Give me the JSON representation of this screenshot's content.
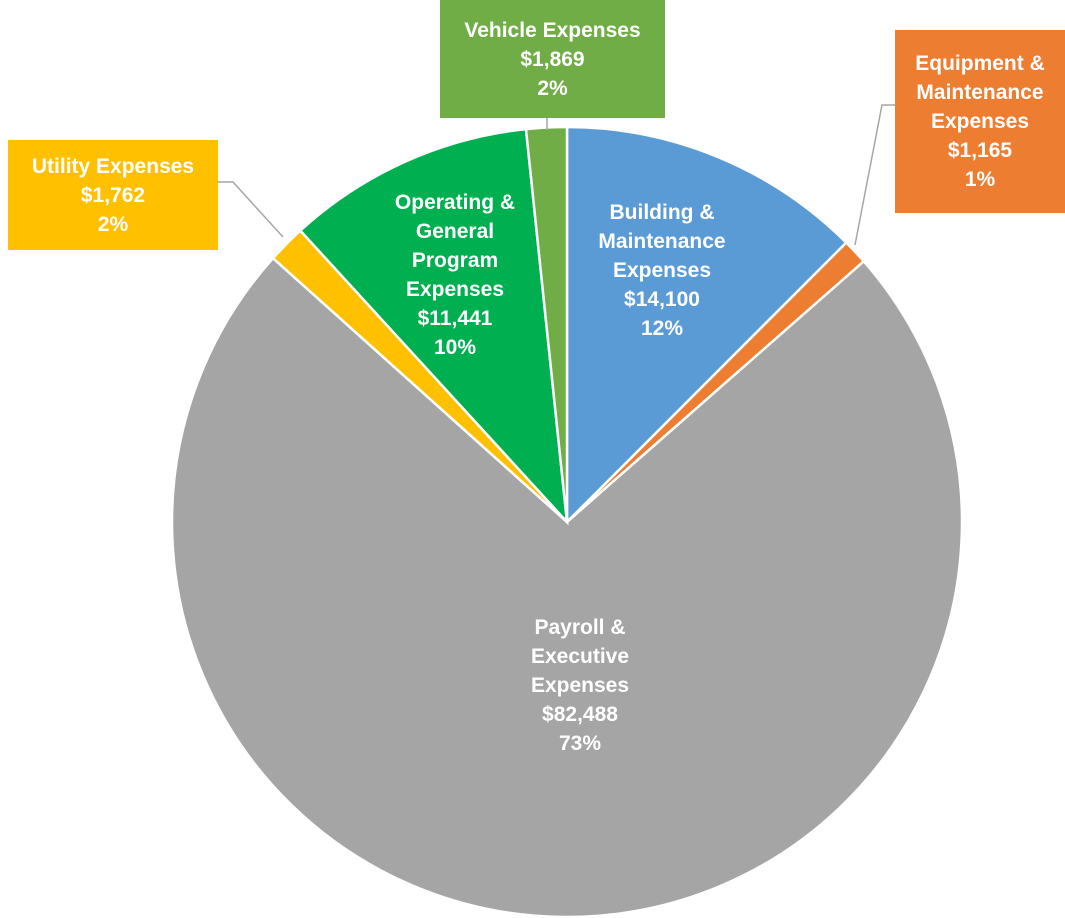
{
  "chart_data": {
    "type": "pie",
    "categories": [
      "Building & Maintenance Expenses",
      "Equipment & Maintenance Expenses",
      "Payroll & Executive Expenses",
      "Utility Expenses",
      "Operating & General Program Expenses",
      "Vehicle Expenses"
    ],
    "values": [
      14100,
      1165,
      82488,
      1762,
      11441,
      1869
    ],
    "value_labels": [
      "$14,100",
      "$1,165",
      "$82,488",
      "$1,762",
      "$11,441",
      "$1,869"
    ],
    "percentages": [
      12,
      1,
      73,
      2,
      10,
      2
    ],
    "percentage_labels": [
      "12%",
      "1%",
      "73%",
      "2%",
      "10%",
      "2%"
    ],
    "colors": [
      "#5b9bd5",
      "#ed7d31",
      "#a5a5a5",
      "#ffc000",
      "#00b050",
      "#70ad47"
    ]
  }
}
